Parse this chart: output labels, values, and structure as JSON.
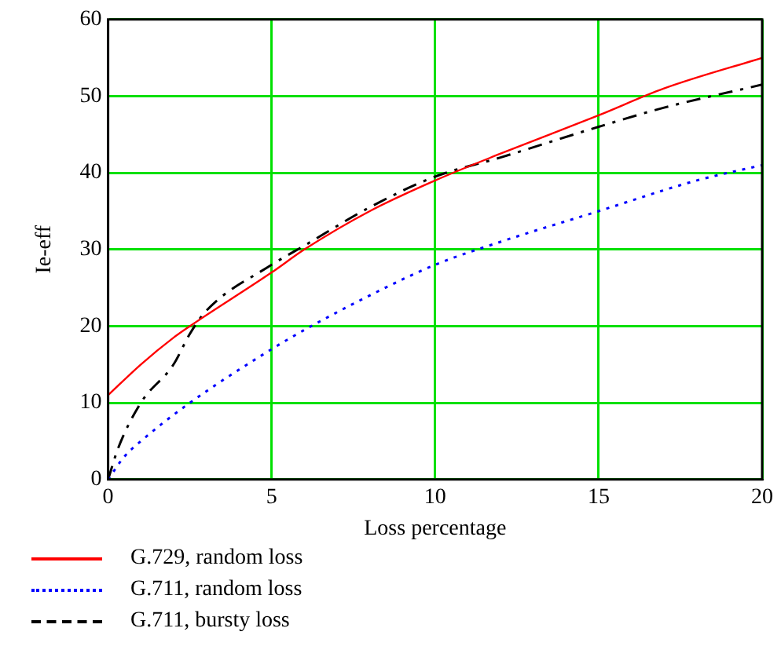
{
  "chart_data": {
    "type": "line",
    "xlabel": "Loss percentage",
    "ylabel": "Ie-eff",
    "xlim": [
      0,
      20
    ],
    "xticks": [
      0,
      5,
      10,
      15,
      20
    ],
    "ylim": [
      0,
      60
    ],
    "yticks": [
      0,
      10,
      20,
      30,
      40,
      50,
      60
    ],
    "grid": true,
    "legend": "bottom",
    "marker": "none",
    "series": [
      {
        "name": "G.729, random loss",
        "color": "#ff0000",
        "line_style": "solid",
        "x": [
          0,
          1,
          2,
          2.5,
          5,
          6,
          8,
          10,
          12,
          15,
          17,
          20
        ],
        "values": [
          11,
          15,
          18.5,
          20,
          27,
          30,
          35,
          39,
          42.5,
          47.5,
          51,
          55
        ]
      },
      {
        "name": "G.711, random loss",
        "color": "#0000ff",
        "line_style": "dotted",
        "x": [
          0,
          0.5,
          1,
          2.5,
          5,
          6,
          8,
          10,
          12,
          15,
          18,
          20
        ],
        "values": [
          0,
          3,
          5,
          10,
          17,
          19.5,
          24,
          28,
          31,
          35,
          39,
          41
        ]
      },
      {
        "name": "G.711, bursty loss",
        "color": "#000000",
        "line_style": "dashed",
        "x": [
          0,
          0.3,
          1,
          2,
          2.5,
          3,
          5,
          6,
          8,
          10,
          12,
          15,
          17,
          20
        ],
        "values": [
          0,
          4,
          10,
          15,
          19,
          22,
          28,
          30.5,
          35.5,
          39.5,
          42,
          46,
          48.5,
          51.5
        ]
      }
    ]
  }
}
